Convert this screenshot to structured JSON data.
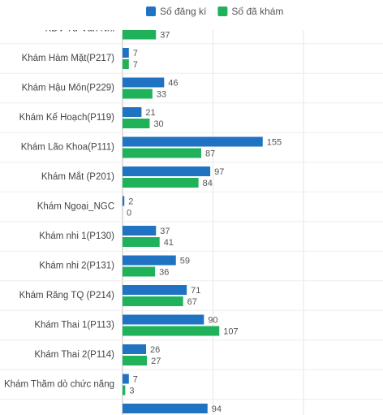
{
  "chart_data": {
    "type": "bar",
    "orientation": "horizontal",
    "categories": [
      "KĐV Tư Vấn Nhi",
      "Khám Hàm Mặt(P217)",
      "Khám Hậu Môn(P229)",
      "Khám Kế Hoạch(P119)",
      "Khám Lão Khoa(P111)",
      "Khám Mắt (P201)",
      "Khám Ngoại_NGC",
      "Khám nhi 1(P130)",
      "Khám nhi 2(P131)",
      "Khám Răng TQ (P214)",
      "Khám Thai 1(P113)",
      "Khám Thai 2(P114)",
      "Khám Thăm dò chức năng",
      null
    ],
    "series": [
      {
        "name": "Số đăng kí",
        "color": "#1f73c2",
        "values": [
          null,
          7,
          46,
          21,
          155,
          97,
          2,
          37,
          59,
          71,
          90,
          26,
          7,
          94
        ]
      },
      {
        "name": "Số đã khám",
        "color": "#1fb25a",
        "values": [
          37,
          7,
          33,
          30,
          87,
          84,
          0,
          41,
          36,
          67,
          107,
          27,
          3,
          null
        ]
      }
    ],
    "xlim": [
      0,
      288
    ],
    "xticks": [
      0,
      100,
      200
    ],
    "grid": true,
    "legend": "top"
  }
}
